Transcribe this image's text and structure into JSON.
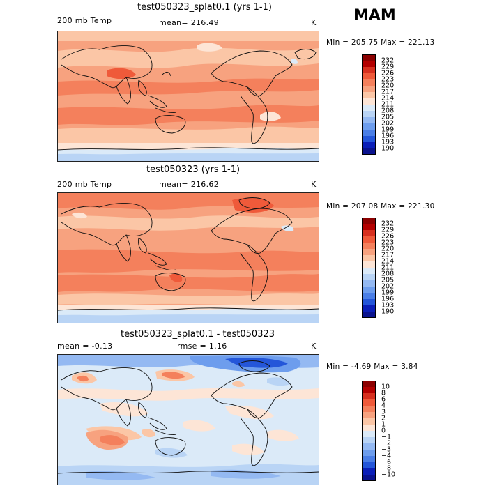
{
  "season": "MAM",
  "panels": [
    {
      "title": "test050323_splat0.1 (yrs 1-1)",
      "left_label": "200 mb Temp",
      "mid_label": "mean= 216.49",
      "unit": "K",
      "minmax": "Min = 205.75 Max = 221.13",
      "colorbar": {
        "labels": [
          "232",
          "229",
          "226",
          "223",
          "220",
          "217",
          "214",
          "211",
          "208",
          "205",
          "202",
          "199",
          "196",
          "193",
          "190"
        ],
        "colors": [
          "#8b0000",
          "#b30000",
          "#d7301f",
          "#ef5a3a",
          "#f4805c",
          "#f7a27f",
          "#fbc6a6",
          "#fde5d6",
          "#dbeaf8",
          "#b9d4f5",
          "#94b9f2",
          "#6d9ded",
          "#4a7ee6",
          "#2456d9",
          "#0b1fb8",
          "#0a138e"
        ]
      },
      "map_theme": "warm"
    },
    {
      "title": "test050323 (yrs 1-1)",
      "left_label": "200 mb Temp",
      "mid_label": "mean= 216.62",
      "unit": "K",
      "minmax": "Min = 207.08 Max = 221.30",
      "colorbar": {
        "labels": [
          "232",
          "229",
          "226",
          "223",
          "220",
          "217",
          "214",
          "211",
          "208",
          "205",
          "202",
          "199",
          "196",
          "193",
          "190"
        ],
        "colors": [
          "#8b0000",
          "#b30000",
          "#d7301f",
          "#ef5a3a",
          "#f4805c",
          "#f7a27f",
          "#fbc6a6",
          "#fde5d6",
          "#dbeaf8",
          "#b9d4f5",
          "#94b9f2",
          "#6d9ded",
          "#4a7ee6",
          "#2456d9",
          "#0b1fb8",
          "#0a138e"
        ]
      },
      "map_theme": "warm"
    },
    {
      "title": "test050323_splat0.1 - test050323",
      "left_label": "mean =  -0.13",
      "mid_label": "rmse =   1.16",
      "unit": "K",
      "minmax": "Min =  -4.69 Max =   3.84",
      "colorbar": {
        "labels": [
          "10",
          "8",
          "6",
          "4",
          "3",
          "2",
          "1",
          "0",
          "−1",
          "−2",
          "−3",
          "−4",
          "−6",
          "−8",
          "−10"
        ],
        "colors": [
          "#8b0000",
          "#b30000",
          "#d7301f",
          "#ef5a3a",
          "#f4805c",
          "#f7a27f",
          "#fbc6a6",
          "#fde5d6",
          "#dbeaf8",
          "#b9d4f5",
          "#94b9f2",
          "#6d9ded",
          "#4a7ee6",
          "#2456d9",
          "#0b1fb8",
          "#0a138e"
        ]
      },
      "map_theme": "diff"
    }
  ]
}
